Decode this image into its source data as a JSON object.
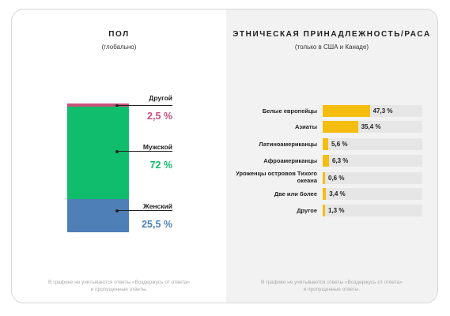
{
  "gender": {
    "title": "ПОЛ",
    "subtitle": "(глобально)",
    "footnote_line1": "В графике не учитываются ответы «Воздержусь от ответа»",
    "footnote_line2": "и пропущенные ответы.",
    "items": [
      {
        "label": "Другой",
        "value_text": "2,5 %",
        "color": "#c8527a"
      },
      {
        "label": "Мужской",
        "value_text": "72 %",
        "color": "#0fbd6c"
      },
      {
        "label": "Женский",
        "value_text": "25,5 %",
        "color": "#4f7fb7"
      }
    ]
  },
  "ethnicity": {
    "title": "ЭТНИЧЕСКАЯ ПРИНАДЛЕЖНОСТЬ/РАСА",
    "subtitle": "(только в США и Канаде)",
    "footnote_line1": "В графике не учитываются ответы «Воздержусь от ответа»",
    "footnote_line2": "и пропущенные ответы.",
    "items": [
      {
        "label": "Белые европейцы",
        "value_text": "47,3 %"
      },
      {
        "label": "Азиаты",
        "value_text": "35,4 %"
      },
      {
        "label": "Латиноамериканцы",
        "value_text": "5,6 %"
      },
      {
        "label": "Афроамериканцы",
        "value_text": "6,3 %"
      },
      {
        "label": "Уроженцы островов Тихого океана",
        "value_text": "0,6 %"
      },
      {
        "label": "Две или более",
        "value_text": "3,4 %"
      },
      {
        "label": "Другое",
        "value_text": "1,3 %"
      }
    ]
  },
  "chart_data": [
    {
      "type": "bar",
      "stacked": true,
      "title": "ПОЛ",
      "subtitle": "(глобально)",
      "categories": [
        "Другой",
        "Мужской",
        "Женский"
      ],
      "values": [
        2.5,
        72,
        25.5
      ],
      "unit": "%",
      "colors": [
        "#c8527a",
        "#0fbd6c",
        "#4f7fb7"
      ]
    },
    {
      "type": "bar",
      "orientation": "horizontal",
      "title": "ЭТНИЧЕСКАЯ ПРИНАДЛЕЖНОСТЬ/РАСА",
      "subtitle": "(только в США и Канаде)",
      "categories": [
        "Белые европейцы",
        "Азиаты",
        "Латиноамериканцы",
        "Афроамериканцы",
        "Уроженцы островов Тихого океана",
        "Две или более",
        "Другое"
      ],
      "values": [
        47.3,
        35.4,
        5.6,
        6.3,
        0.6,
        3.4,
        1.3
      ],
      "unit": "%",
      "color": "#f5bd0f"
    }
  ]
}
